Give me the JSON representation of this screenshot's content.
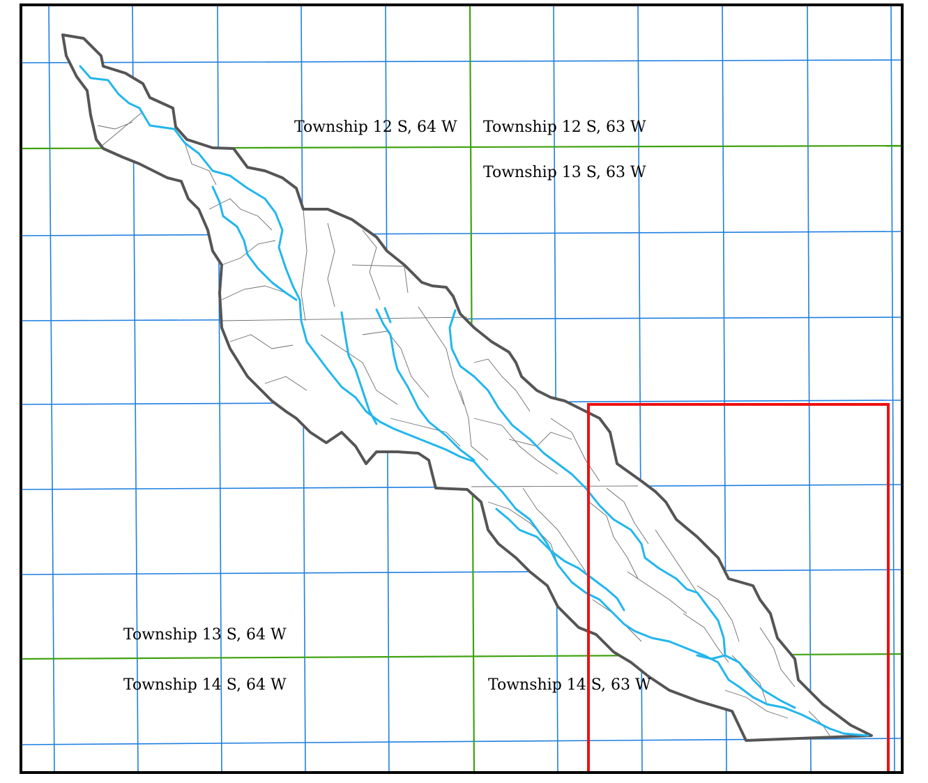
{
  "map": {
    "labels": {
      "t12s64w": "Township 12 S, 64 W",
      "t12s63w": "Township 12 S, 63 W",
      "t13s63w": "Township 13 S, 63 W",
      "t13s64w": "Township 13 S, 64 W",
      "t14s64w": "Township 14 S, 64 W",
      "t14s63w": "Township 14 S, 63 W"
    },
    "colors": {
      "frame": "#000000",
      "section_lines": "#1f7fe0",
      "township_lines": "#3fa20f",
      "watershed_boundary": "#555555",
      "subbasin_lines": "#6a6a6a",
      "streams": "#22b6ec",
      "highlight_box": "#ee1111"
    }
  }
}
